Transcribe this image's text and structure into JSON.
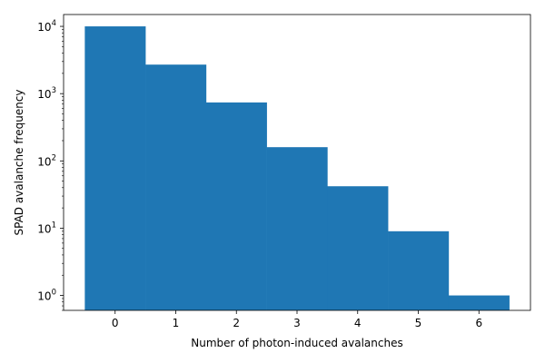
{
  "chart_data": {
    "type": "bar",
    "title": "",
    "xlabel": "Number of photon-induced avalanches",
    "ylabel": "SPAD avalanche frequency",
    "y_scale": "log",
    "categories": [
      0,
      1,
      2,
      3,
      4,
      5,
      6
    ],
    "bin_width": 1,
    "values": [
      10000,
      2700,
      740,
      160,
      42,
      9,
      1
    ],
    "xlim": [
      -0.85,
      6.85
    ],
    "ylim": [
      0.6,
      15000
    ],
    "x_ticks": [
      0,
      1,
      2,
      3,
      4,
      5,
      6
    ],
    "y_ticks": [
      {
        "value": 1,
        "base": "10",
        "exp": "0"
      },
      {
        "value": 10,
        "base": "10",
        "exp": "1"
      },
      {
        "value": 100,
        "base": "10",
        "exp": "2"
      },
      {
        "value": 1000,
        "base": "10",
        "exp": "3"
      },
      {
        "value": 10000,
        "base": "10",
        "exp": "4"
      }
    ],
    "grid": false,
    "legend": "none",
    "bar_color": "#1f77b4"
  }
}
